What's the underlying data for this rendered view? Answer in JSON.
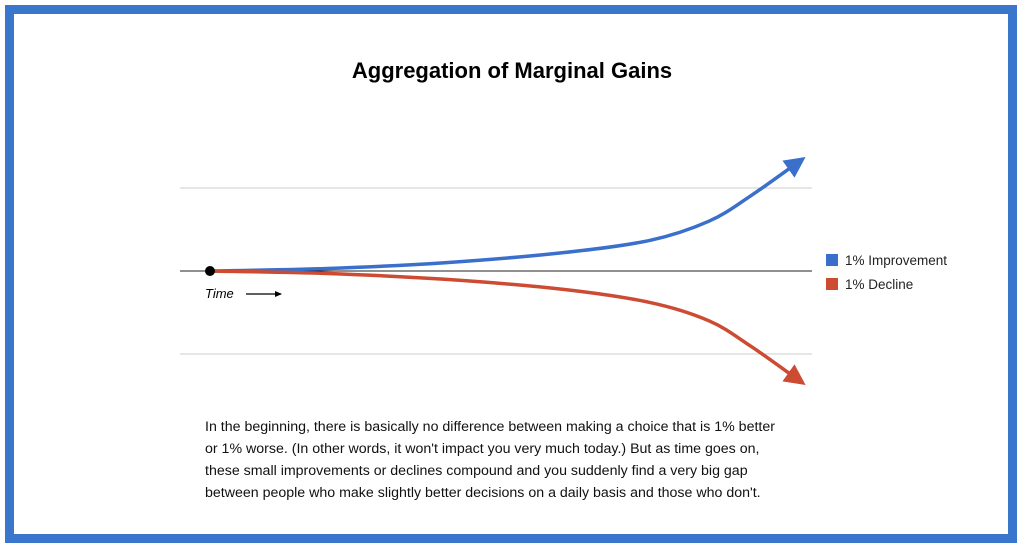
{
  "chart_data": {
    "type": "line",
    "title": "Aggregation of Marginal Gains",
    "xlabel": "Time",
    "ylabel": "",
    "xlim": [
      0,
      100
    ],
    "ylim": [
      -1.5,
      1.5
    ],
    "gridlines_y": [
      -1,
      0,
      1
    ],
    "legend": "right",
    "series": [
      {
        "name": "1% Improvement",
        "color": "#3a6fcc",
        "x": [
          0,
          20,
          40,
          60,
          75,
          85,
          92,
          100
        ],
        "y": [
          0,
          0.03,
          0.1,
          0.22,
          0.37,
          0.6,
          0.9,
          1.3
        ]
      },
      {
        "name": "1% Decline",
        "color": "#cc4b32",
        "x": [
          0,
          20,
          40,
          60,
          75,
          85,
          92,
          100
        ],
        "y": [
          0,
          -0.03,
          -0.1,
          -0.22,
          -0.38,
          -0.6,
          -0.9,
          -1.3
        ]
      }
    ]
  },
  "caption": [
    "In the beginning, there is basically no difference between making a choice that is 1% better",
    "or 1% worse. (In other words, it won't impact you very much today.) But as time goes on,",
    "these small improvements or declines compound and you suddenly find a very big gap",
    "between people who make slightly better decisions on a daily basis and those who don't."
  ]
}
